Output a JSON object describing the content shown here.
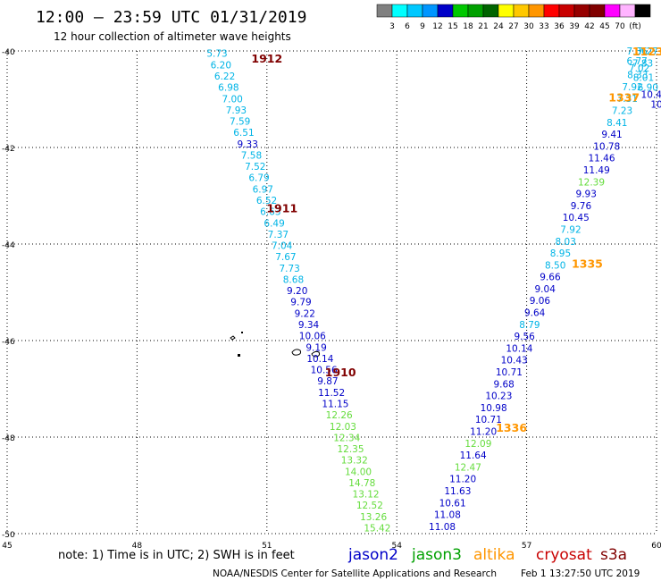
{
  "header": {
    "title": "12:00 – 23:59 UTC 01/31/2019",
    "subtitle": "12 hour collection of altimeter wave heights"
  },
  "scale": {
    "colors": [
      "#808080",
      "#00ffff",
      "#00c8ff",
      "#0096ff",
      "#0000c8",
      "#00c800",
      "#00a000",
      "#006400",
      "#ffff00",
      "#ffc800",
      "#ff9600",
      "#ff0000",
      "#c80000",
      "#960000",
      "#800000",
      "#ff00ff",
      "#ffb4ff",
      "#000000"
    ],
    "labels": [
      "3",
      "6",
      "9",
      "12",
      "15",
      "18",
      "21",
      "24",
      "27",
      "30",
      "33",
      "36",
      "39",
      "42",
      "45",
      "70",
      "(ft)"
    ]
  },
  "axes": {
    "lat_labels": [
      "-40",
      "-42",
      "-44",
      "-46",
      "-48",
      "-50"
    ],
    "lat_values": [
      -40,
      -42,
      -44,
      -46,
      -48,
      -50
    ],
    "lon_labels": [
      "45",
      "48",
      "51",
      "54",
      "57",
      "60"
    ],
    "lon_values": [
      45,
      48,
      51,
      54,
      57,
      60
    ]
  },
  "colors": {
    "jason2": "#0000c8",
    "jason3": "#00a000",
    "altika": "#ff9600",
    "cryosat": "#c80000",
    "s3a": "#800000",
    "lightblue": "#00b4e6",
    "lightgreen": "#64dc3c",
    "darkred": "#800000",
    "orange": "#ff9600"
  },
  "time_labels": [
    {
      "text": "1912",
      "lon": 51.0,
      "lat": -40.15,
      "color": "darkred"
    },
    {
      "text": "1911",
      "lon": 51.35,
      "lat": -43.25,
      "color": "darkred"
    },
    {
      "text": "1910",
      "lon": 52.7,
      "lat": -46.65,
      "color": "darkred"
    },
    {
      "text": "1335",
      "lon": 58.4,
      "lat": -44.4,
      "color": "orange"
    },
    {
      "text": "1336",
      "lon": 56.65,
      "lat": -47.8,
      "color": "orange"
    },
    {
      "text": "1337",
      "lon": 59.25,
      "lat": -40.95,
      "color": "orange"
    },
    {
      "text": "1123",
      "lon": 59.8,
      "lat": -40.0,
      "color": "orange"
    }
  ],
  "track1": {
    "lon_start": 49.85,
    "lat_start": -40.05,
    "lon_end": 53.55,
    "lat_end": -49.88,
    "values": [
      {
        "v": "5.73",
        "c": "lightblue"
      },
      {
        "v": "6.20",
        "c": "lightblue"
      },
      {
        "v": "6.22",
        "c": "lightblue"
      },
      {
        "v": "6.98",
        "c": "lightblue"
      },
      {
        "v": "7.00",
        "c": "lightblue"
      },
      {
        "v": "7.93",
        "c": "lightblue"
      },
      {
        "v": "7.59",
        "c": "lightblue"
      },
      {
        "v": "6.51",
        "c": "lightblue"
      },
      {
        "v": "9.33",
        "c": "jason2"
      },
      {
        "v": "7.58",
        "c": "lightblue"
      },
      {
        "v": "7.52",
        "c": "lightblue"
      },
      {
        "v": "6.79",
        "c": "lightblue"
      },
      {
        "v": "6.97",
        "c": "lightblue"
      },
      {
        "v": "6.52",
        "c": "lightblue"
      },
      {
        "v": "6.63",
        "c": "lightblue"
      },
      {
        "v": "6.49",
        "c": "lightblue"
      },
      {
        "v": "7.37",
        "c": "lightblue"
      },
      {
        "v": "7.04",
        "c": "lightblue"
      },
      {
        "v": "7.67",
        "c": "lightblue"
      },
      {
        "v": "7.73",
        "c": "lightblue"
      },
      {
        "v": "8.68",
        "c": "lightblue"
      },
      {
        "v": "9.20",
        "c": "jason2"
      },
      {
        "v": "9.79",
        "c": "jason2"
      },
      {
        "v": "9.22",
        "c": "jason2"
      },
      {
        "v": "9.34",
        "c": "jason2"
      },
      {
        "v": "10.06",
        "c": "jason2"
      },
      {
        "v": "9.19",
        "c": "jason2"
      },
      {
        "v": "10.14",
        "c": "jason2"
      },
      {
        "v": "10.56",
        "c": "jason2"
      },
      {
        "v": "9.87",
        "c": "jason2"
      },
      {
        "v": "11.52",
        "c": "jason2"
      },
      {
        "v": "11.15",
        "c": "jason2"
      },
      {
        "v": "12.26",
        "c": "lightgreen"
      },
      {
        "v": "12.03",
        "c": "lightgreen"
      },
      {
        "v": "12.34",
        "c": "lightgreen"
      },
      {
        "v": "12.35",
        "c": "lightgreen"
      },
      {
        "v": "13.32",
        "c": "lightgreen"
      },
      {
        "v": "14.00",
        "c": "lightgreen"
      },
      {
        "v": "14.78",
        "c": "lightgreen"
      },
      {
        "v": "13.12",
        "c": "lightgreen"
      },
      {
        "v": "12.52",
        "c": "lightgreen"
      },
      {
        "v": "13.26",
        "c": "lightgreen"
      },
      {
        "v": "15.42",
        "c": "lightgreen"
      }
    ]
  },
  "track2": {
    "lon_start": 55.05,
    "lat_start": -49.85,
    "lon_end": 59.8,
    "lat_end": -40.0,
    "values": [
      {
        "v": "11.08",
        "c": "jason2"
      },
      {
        "v": "11.08",
        "c": "jason2"
      },
      {
        "v": "10.61",
        "c": "jason2"
      },
      {
        "v": "11.63",
        "c": "jason2"
      },
      {
        "v": "11.20",
        "c": "jason2"
      },
      {
        "v": "12.47",
        "c": "lightgreen"
      },
      {
        "v": "11.64",
        "c": "jason2"
      },
      {
        "v": "12.09",
        "c": "lightgreen"
      },
      {
        "v": "11.20",
        "c": "jason2"
      },
      {
        "v": "10.71",
        "c": "jason2"
      },
      {
        "v": "10.98",
        "c": "jason2"
      },
      {
        "v": "10.23",
        "c": "jason2"
      },
      {
        "v": "9.68",
        "c": "jason2"
      },
      {
        "v": "10.71",
        "c": "jason2"
      },
      {
        "v": "10.43",
        "c": "jason2"
      },
      {
        "v": "10.14",
        "c": "jason2"
      },
      {
        "v": "9.56",
        "c": "jason2"
      },
      {
        "v": "8.79",
        "c": "lightblue"
      },
      {
        "v": "9.64",
        "c": "jason2"
      },
      {
        "v": "9.06",
        "c": "jason2"
      },
      {
        "v": "9.04",
        "c": "jason2"
      },
      {
        "v": "9.66",
        "c": "jason2"
      },
      {
        "v": "8.50",
        "c": "lightblue"
      },
      {
        "v": "8.95",
        "c": "lightblue"
      },
      {
        "v": "8.03",
        "c": "lightblue"
      },
      {
        "v": "7.92",
        "c": "lightblue"
      },
      {
        "v": "10.45",
        "c": "jason2"
      },
      {
        "v": "9.76",
        "c": "jason2"
      },
      {
        "v": "9.93",
        "c": "jason2"
      },
      {
        "v": "12.39",
        "c": "lightgreen"
      },
      {
        "v": "11.49",
        "c": "jason2"
      },
      {
        "v": "11.46",
        "c": "jason2"
      },
      {
        "v": "10.78",
        "c": "jason2"
      },
      {
        "v": "9.41",
        "c": "jason2"
      },
      {
        "v": "8.41",
        "c": "lightblue"
      },
      {
        "v": "7.23",
        "c": "lightblue"
      },
      {
        "v": "7.31",
        "c": "lightblue"
      },
      {
        "v": "7.92",
        "c": "lightblue"
      },
      {
        "v": "8.33",
        "c": "lightblue"
      },
      {
        "v": "7.83",
        "c": "lightblue"
      },
      {
        "v": "7.27",
        "c": "lightblue"
      }
    ]
  },
  "track3": [
    {
      "v": "7.36",
      "c": "lightblue",
      "lon": 59.55,
      "lat": -40.0
    },
    {
      "v": "6.77",
      "c": "lightblue",
      "lon": 59.55,
      "lat": -40.2
    },
    {
      "v": "7.02",
      "c": "lightblue",
      "lon": 59.6,
      "lat": -40.35
    },
    {
      "v": "8.01",
      "c": "lightblue",
      "lon": 59.7,
      "lat": -40.55
    },
    {
      "v": "6.90",
      "c": "lightblue",
      "lon": 59.8,
      "lat": -40.75
    },
    {
      "v": "10.40",
      "c": "jason2",
      "lon": 59.95,
      "lat": -40.9
    },
    {
      "v": "10",
      "c": "jason2",
      "lon": 60.0,
      "lat": -41.1
    }
  ],
  "note": "note: 1) Time is in UTC; 2) SWH is in feet",
  "legend": [
    {
      "name": "jason2",
      "color": "jason2"
    },
    {
      "name": "jason3",
      "color": "jason3"
    },
    {
      "name": "altika",
      "color": "altika"
    },
    {
      "name": "cryosat",
      "color": "cryosat"
    },
    {
      "name": "s3a",
      "color": "s3a"
    }
  ],
  "footer": {
    "credit": "NOAA/NESDIS Center for Satellite Applications and Research",
    "timestamp": "Feb  1 13:27:50 UTC 2019"
  }
}
